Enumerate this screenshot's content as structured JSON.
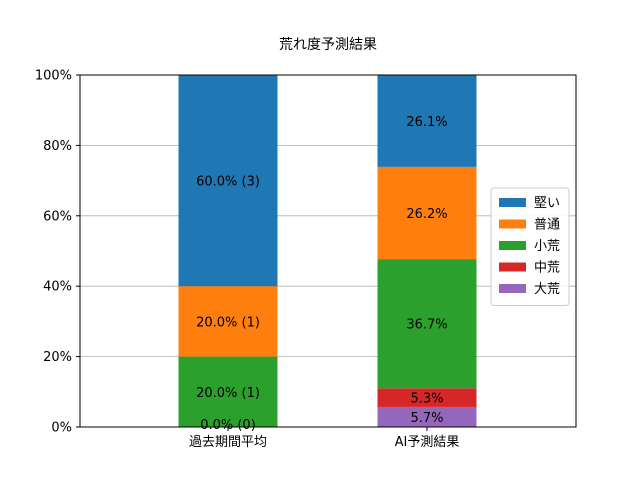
{
  "chart_data": {
    "type": "bar",
    "stacked": true,
    "title": "荒れ度予測結果",
    "xlabel": "",
    "ylabel": "",
    "categories": [
      "過去期間平均",
      "AI予測結果"
    ],
    "ylim": [
      0,
      100
    ],
    "yticks": [
      "0%",
      "20%",
      "40%",
      "60%",
      "80%",
      "100%"
    ],
    "grid": "horizontal",
    "legend_position": "center-right",
    "series": [
      {
        "name": "大荒",
        "color": "#9467bd",
        "values": [
          0,
          5.7
        ],
        "labels": [
          "",
          "5.7%"
        ]
      },
      {
        "name": "中荒",
        "color": "#d62728",
        "values": [
          0,
          5.3
        ],
        "labels": [
          "",
          "5.3%"
        ]
      },
      {
        "name": "小荒",
        "color": "#2ca02c",
        "values": [
          20.0,
          36.7
        ],
        "labels": [
          "20.0% (1)",
          "36.7%"
        ]
      },
      {
        "name": "普通",
        "color": "#ff7f0e",
        "values": [
          20.0,
          26.2
        ],
        "labels": [
          "20.0% (1)",
          "26.2%"
        ]
      },
      {
        "name": "堅い",
        "color": "#1f77b4",
        "values": [
          60.0,
          26.1
        ],
        "labels": [
          "60.0% (3)",
          "26.1%"
        ]
      }
    ],
    "extra_labels": [
      {
        "category_index": 0,
        "value": 0,
        "text": "0.0% (0)"
      }
    ],
    "legend_order": [
      "堅い",
      "普通",
      "小荒",
      "中荒",
      "大荒"
    ]
  }
}
